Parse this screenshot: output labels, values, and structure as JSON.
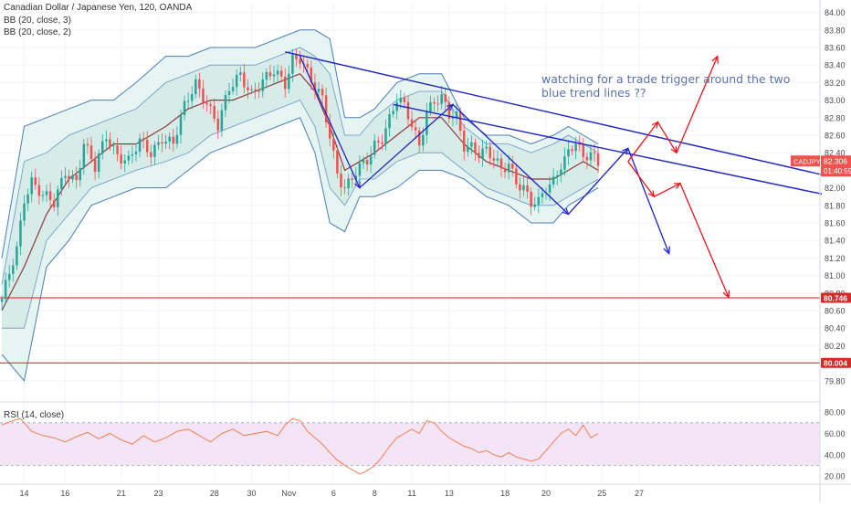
{
  "header": {
    "title": "Canadian Dollar / Japanese Yen, 120, OANDA",
    "indicator1": "BB (20, close, 3)",
    "indicator2": "BB (20, close, 2)",
    "rsi_label": "RSI (14, close)"
  },
  "annotation": {
    "line1": "watching for a trade trigger around the two",
    "line2": "blue trend lines ??"
  },
  "price_tags": {
    "symbol": "CADJPY",
    "current": "82.306",
    "countdown": "01:40:59",
    "level_high": "80.746",
    "level_low": "80.004"
  },
  "colors": {
    "candle_up": "#26a69a",
    "candle_down": "#ef5350",
    "band_outline": "#4a7fb5",
    "band_fill": "#e6f4f2",
    "basis": "#8b3a3a",
    "trendline": "#1f24c8",
    "projection": "#e8161b",
    "support": "#e8161b",
    "rsi_line": "#f57c52",
    "rsi_fill": "#f3e5f5",
    "annotation_text": "#5b72a8",
    "tag_dark": "#d42a2a"
  },
  "chart_data": [
    {
      "type": "candlestick",
      "title": "Canadian Dollar / Japanese Yen, 120, OANDA",
      "x_labels": [
        "14",
        "16",
        "21",
        "23",
        "28",
        "30",
        "Nov",
        "6",
        "8",
        "11",
        "13",
        "18",
        "20",
        "25",
        "27"
      ],
      "y_ticks": [
        79.8,
        80.0,
        80.2,
        80.4,
        80.6,
        80.8,
        81.0,
        81.2,
        81.4,
        81.6,
        81.8,
        82.0,
        82.2,
        82.4,
        82.6,
        82.8,
        83.0,
        83.2,
        83.4,
        83.6,
        83.8,
        84.0
      ],
      "ylim": [
        79.6,
        84.1
      ],
      "price_path": [
        [
          0,
          80.7
        ],
        [
          4,
          81.3
        ],
        [
          6,
          81.9
        ],
        [
          8,
          82.1
        ],
        [
          11,
          81.9
        ],
        [
          14,
          81.8
        ],
        [
          17,
          82.2
        ],
        [
          20,
          82.1
        ],
        [
          22,
          82.5
        ],
        [
          25,
          82.2
        ],
        [
          28,
          82.6
        ],
        [
          31,
          82.4
        ],
        [
          34,
          82.3
        ],
        [
          37,
          82.5
        ],
        [
          40,
          82.4
        ],
        [
          43,
          82.6
        ],
        [
          46,
          82.5
        ],
        [
          49,
          82.9
        ],
        [
          52,
          83.2
        ],
        [
          55,
          83.0
        ],
        [
          58,
          82.7
        ],
        [
          61,
          83.1
        ],
        [
          64,
          83.3
        ],
        [
          67,
          83.1
        ],
        [
          70,
          83.2
        ],
        [
          73,
          83.3
        ],
        [
          76,
          83.2
        ],
        [
          78,
          83.5
        ],
        [
          80,
          83.5
        ],
        [
          82,
          83.3
        ],
        [
          84,
          83.1
        ],
        [
          86,
          83.0
        ],
        [
          88,
          82.6
        ],
        [
          90,
          82.2
        ],
        [
          92,
          82.0
        ],
        [
          94,
          82.1
        ],
        [
          96,
          82.2
        ],
        [
          98,
          82.3
        ],
        [
          100,
          82.5
        ],
        [
          102,
          82.6
        ],
        [
          104,
          82.8
        ],
        [
          106,
          83.0
        ],
        [
          108,
          82.9
        ],
        [
          110,
          82.7
        ],
        [
          112,
          82.5
        ],
        [
          114,
          82.9
        ],
        [
          116,
          83.0
        ],
        [
          118,
          83.0
        ],
        [
          120,
          82.8
        ],
        [
          122,
          82.8
        ],
        [
          124,
          82.5
        ],
        [
          126,
          82.5
        ],
        [
          128,
          82.4
        ],
        [
          130,
          82.4
        ],
        [
          132,
          82.3
        ],
        [
          134,
          82.2
        ],
        [
          136,
          82.3
        ],
        [
          138,
          82.1
        ],
        [
          140,
          82.0
        ],
        [
          142,
          81.8
        ],
        [
          144,
          81.8
        ],
        [
          146,
          82.0
        ],
        [
          148,
          82.1
        ],
        [
          150,
          82.3
        ],
        [
          152,
          82.4
        ],
        [
          154,
          82.5
        ],
        [
          156,
          82.3
        ],
        [
          158,
          82.4
        ],
        [
          160,
          82.3
        ]
      ],
      "bollinger_outer": {
        "upper": [
          [
            0,
            81.2
          ],
          [
            6,
            82.7
          ],
          [
            12,
            82.8
          ],
          [
            18,
            82.9
          ],
          [
            24,
            83.0
          ],
          [
            30,
            83.0
          ],
          [
            36,
            83.2
          ],
          [
            44,
            83.5
          ],
          [
            50,
            83.5
          ],
          [
            56,
            83.6
          ],
          [
            62,
            83.6
          ],
          [
            68,
            83.6
          ],
          [
            74,
            83.7
          ],
          [
            80,
            83.8
          ],
          [
            84,
            83.8
          ],
          [
            88,
            83.7
          ],
          [
            92,
            82.8
          ],
          [
            96,
            82.8
          ],
          [
            100,
            82.9
          ],
          [
            106,
            83.2
          ],
          [
            112,
            83.3
          ],
          [
            118,
            83.3
          ],
          [
            124,
            82.8
          ],
          [
            130,
            82.6
          ],
          [
            136,
            82.6
          ],
          [
            142,
            82.5
          ],
          [
            148,
            82.6
          ],
          [
            152,
            82.7
          ],
          [
            156,
            82.6
          ],
          [
            160,
            82.5
          ]
        ],
        "lower": [
          [
            0,
            80.1
          ],
          [
            6,
            79.8
          ],
          [
            12,
            81.1
          ],
          [
            18,
            81.4
          ],
          [
            24,
            81.8
          ],
          [
            30,
            81.9
          ],
          [
            36,
            82.0
          ],
          [
            44,
            82.0
          ],
          [
            50,
            82.2
          ],
          [
            56,
            82.4
          ],
          [
            62,
            82.5
          ],
          [
            68,
            82.6
          ],
          [
            74,
            82.7
          ],
          [
            80,
            82.8
          ],
          [
            84,
            82.4
          ],
          [
            88,
            81.6
          ],
          [
            92,
            81.5
          ],
          [
            96,
            81.9
          ],
          [
            100,
            81.9
          ],
          [
            106,
            82.0
          ],
          [
            112,
            82.2
          ],
          [
            118,
            82.2
          ],
          [
            124,
            82.1
          ],
          [
            130,
            81.9
          ],
          [
            136,
            81.8
          ],
          [
            142,
            81.6
          ],
          [
            148,
            81.6
          ],
          [
            152,
            81.8
          ],
          [
            156,
            81.9
          ],
          [
            160,
            82.0
          ]
        ]
      },
      "bollinger_inner": {
        "upper": [
          [
            0,
            80.9
          ],
          [
            6,
            82.3
          ],
          [
            12,
            82.4
          ],
          [
            18,
            82.6
          ],
          [
            24,
            82.7
          ],
          [
            30,
            82.8
          ],
          [
            36,
            82.9
          ],
          [
            44,
            83.2
          ],
          [
            50,
            83.3
          ],
          [
            56,
            83.4
          ],
          [
            62,
            83.4
          ],
          [
            68,
            83.4
          ],
          [
            74,
            83.5
          ],
          [
            80,
            83.6
          ],
          [
            84,
            83.5
          ],
          [
            88,
            83.3
          ],
          [
            92,
            82.6
          ],
          [
            96,
            82.6
          ],
          [
            100,
            82.8
          ],
          [
            106,
            83.0
          ],
          [
            112,
            83.1
          ],
          [
            118,
            83.1
          ],
          [
            124,
            82.7
          ],
          [
            130,
            82.5
          ],
          [
            136,
            82.5
          ],
          [
            142,
            82.4
          ],
          [
            148,
            82.5
          ],
          [
            152,
            82.6
          ],
          [
            156,
            82.5
          ],
          [
            160,
            82.4
          ]
        ],
        "lower": [
          [
            0,
            80.4
          ],
          [
            6,
            80.4
          ],
          [
            12,
            81.4
          ],
          [
            18,
            81.7
          ],
          [
            24,
            82.0
          ],
          [
            30,
            82.1
          ],
          [
            36,
            82.2
          ],
          [
            44,
            82.3
          ],
          [
            50,
            82.4
          ],
          [
            56,
            82.6
          ],
          [
            62,
            82.7
          ],
          [
            68,
            82.8
          ],
          [
            74,
            82.9
          ],
          [
            80,
            83.0
          ],
          [
            84,
            82.7
          ],
          [
            88,
            82.0
          ],
          [
            92,
            81.8
          ],
          [
            96,
            82.1
          ],
          [
            100,
            82.1
          ],
          [
            106,
            82.3
          ],
          [
            112,
            82.4
          ],
          [
            118,
            82.4
          ],
          [
            124,
            82.2
          ],
          [
            130,
            82.0
          ],
          [
            136,
            81.9
          ],
          [
            142,
            81.8
          ],
          [
            148,
            81.8
          ],
          [
            152,
            81.9
          ],
          [
            156,
            82.0
          ],
          [
            160,
            82.1
          ]
        ]
      },
      "basis": [
        [
          0,
          80.6
        ],
        [
          6,
          81.1
        ],
        [
          12,
          81.7
        ],
        [
          18,
          82.1
        ],
        [
          24,
          82.3
        ],
        [
          30,
          82.5
        ],
        [
          36,
          82.5
        ],
        [
          44,
          82.7
        ],
        [
          50,
          82.9
        ],
        [
          56,
          83.0
        ],
        [
          62,
          83.0
        ],
        [
          68,
          83.1
        ],
        [
          74,
          83.2
        ],
        [
          80,
          83.3
        ],
        [
          84,
          83.1
        ],
        [
          88,
          82.7
        ],
        [
          92,
          82.2
        ],
        [
          96,
          82.3
        ],
        [
          100,
          82.4
        ],
        [
          106,
          82.6
        ],
        [
          112,
          82.8
        ],
        [
          118,
          82.8
        ],
        [
          124,
          82.5
        ],
        [
          130,
          82.3
        ],
        [
          136,
          82.2
        ],
        [
          142,
          82.1
        ],
        [
          148,
          82.1
        ],
        [
          152,
          82.2
        ],
        [
          156,
          82.3
        ],
        [
          160,
          82.2
        ]
      ],
      "support_levels": [
        80.746,
        80.004
      ],
      "current_price": 82.306,
      "trendlines": [
        {
          "from": [
            76,
            83.55
          ],
          "to": [
            220,
            82.15
          ]
        },
        {
          "from": [
            105,
            82.95
          ],
          "to": [
            220,
            81.93
          ]
        }
      ],
      "blue_arrows": [
        [
          [
            80,
            83.5
          ],
          [
            96,
            82.0
          ],
          [
            121,
            82.95
          ],
          [
            152,
            81.7
          ],
          [
            168,
            82.45
          ],
          [
            179,
            81.25
          ]
        ]
      ],
      "red_arrows": [
        [
          [
            168,
            82.3
          ],
          [
            176,
            82.75
          ],
          [
            181,
            82.4
          ],
          [
            192,
            83.5
          ]
        ],
        [
          [
            168,
            82.3
          ],
          [
            175,
            81.9
          ],
          [
            182,
            82.05
          ],
          [
            195,
            80.75
          ]
        ]
      ],
      "grid": true
    },
    {
      "type": "line",
      "title": "RSI (14, close)",
      "y_ticks": [
        20,
        40,
        60,
        80
      ],
      "ylim": [
        15,
        87
      ],
      "band": [
        30,
        70
      ],
      "values": [
        [
          0,
          68
        ],
        [
          3,
          72
        ],
        [
          5,
          74
        ],
        [
          8,
          62
        ],
        [
          11,
          58
        ],
        [
          14,
          56
        ],
        [
          17,
          52
        ],
        [
          20,
          57
        ],
        [
          23,
          61
        ],
        [
          26,
          55
        ],
        [
          29,
          60
        ],
        [
          32,
          54
        ],
        [
          35,
          50
        ],
        [
          38,
          58
        ],
        [
          41,
          52
        ],
        [
          44,
          56
        ],
        [
          47,
          62
        ],
        [
          50,
          64
        ],
        [
          53,
          58
        ],
        [
          56,
          52
        ],
        [
          59,
          60
        ],
        [
          62,
          64
        ],
        [
          65,
          58
        ],
        [
          68,
          60
        ],
        [
          71,
          62
        ],
        [
          74,
          58
        ],
        [
          76,
          68
        ],
        [
          78,
          74
        ],
        [
          80,
          72
        ],
        [
          82,
          62
        ],
        [
          84,
          56
        ],
        [
          86,
          50
        ],
        [
          88,
          42
        ],
        [
          90,
          35
        ],
        [
          92,
          30
        ],
        [
          94,
          26
        ],
        [
          96,
          22
        ],
        [
          98,
          25
        ],
        [
          100,
          30
        ],
        [
          102,
          38
        ],
        [
          104,
          48
        ],
        [
          106,
          56
        ],
        [
          108,
          60
        ],
        [
          110,
          64
        ],
        [
          112,
          60
        ],
        [
          114,
          72
        ],
        [
          116,
          70
        ],
        [
          118,
          62
        ],
        [
          120,
          56
        ],
        [
          122,
          52
        ],
        [
          124,
          48
        ],
        [
          126,
          46
        ],
        [
          128,
          42
        ],
        [
          130,
          44
        ],
        [
          132,
          40
        ],
        [
          134,
          38
        ],
        [
          136,
          42
        ],
        [
          138,
          38
        ],
        [
          140,
          36
        ],
        [
          142,
          34
        ],
        [
          144,
          36
        ],
        [
          146,
          44
        ],
        [
          148,
          52
        ],
        [
          150,
          60
        ],
        [
          152,
          64
        ],
        [
          154,
          58
        ],
        [
          156,
          68
        ],
        [
          158,
          56
        ],
        [
          160,
          60
        ]
      ]
    }
  ]
}
